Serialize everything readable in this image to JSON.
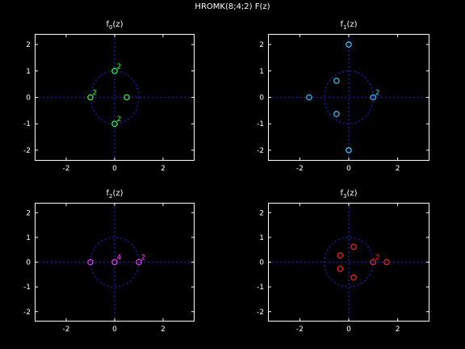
{
  "figure_title": "HROMK(8;4;2) F(z)",
  "chart_data": [
    {
      "type": "scatter",
      "title_main": "f",
      "title_sub": "0",
      "title_rest": "(z)",
      "color": "#33ff33",
      "xlim": [
        -3.3,
        3.3
      ],
      "ylim": [
        -2.4,
        2.4
      ],
      "xticks": [
        -2,
        0,
        2
      ],
      "yticks": [
        -2,
        -1,
        0,
        1,
        2
      ],
      "unit_circle": true,
      "zeros": [
        {
          "x": -1,
          "y": 0,
          "mult": "2"
        },
        {
          "x": 0,
          "y": 1,
          "mult": "2"
        },
        {
          "x": 0,
          "y": -1,
          "mult": "2"
        },
        {
          "x": 0.5,
          "y": 0,
          "mult": ""
        }
      ]
    },
    {
      "type": "scatter",
      "title_main": "f",
      "title_sub": "1",
      "title_rest": "(z)",
      "color": "#33ccff",
      "xlim": [
        -3.3,
        3.3
      ],
      "ylim": [
        -2.4,
        2.4
      ],
      "xticks": [
        -2,
        0,
        2
      ],
      "yticks": [
        -2,
        -1,
        0,
        1,
        2
      ],
      "unit_circle": true,
      "zeros": [
        {
          "x": 0,
          "y": 2,
          "mult": ""
        },
        {
          "x": 0,
          "y": -2,
          "mult": ""
        },
        {
          "x": -1.62,
          "y": 0,
          "mult": ""
        },
        {
          "x": -0.5,
          "y": 0.63,
          "mult": ""
        },
        {
          "x": -0.5,
          "y": -0.63,
          "mult": ""
        },
        {
          "x": 1,
          "y": 0,
          "mult": "2"
        }
      ]
    },
    {
      "type": "scatter",
      "title_main": "f",
      "title_sub": "2",
      "title_rest": "(z)",
      "color": "#ff33ff",
      "xlim": [
        -3.3,
        3.3
      ],
      "ylim": [
        -2.4,
        2.4
      ],
      "xticks": [
        -2,
        0,
        2
      ],
      "yticks": [
        -2,
        -1,
        0,
        1,
        2
      ],
      "unit_circle": true,
      "zeros": [
        {
          "x": -1,
          "y": 0,
          "mult": ""
        },
        {
          "x": 0,
          "y": 0,
          "mult": "4"
        },
        {
          "x": 1,
          "y": 0,
          "mult": "2"
        }
      ]
    },
    {
      "type": "scatter",
      "title_main": "f",
      "title_sub": "3",
      "title_rest": "(z)",
      "color": "#ff2222",
      "xlim": [
        -3.3,
        3.3
      ],
      "ylim": [
        -2.4,
        2.4
      ],
      "xticks": [
        -2,
        0,
        2
      ],
      "yticks": [
        -2,
        -1,
        0,
        1,
        2
      ],
      "unit_circle": true,
      "zeros": [
        {
          "x": -0.35,
          "y": 0.27,
          "mult": ""
        },
        {
          "x": -0.35,
          "y": -0.27,
          "mult": ""
        },
        {
          "x": 0.2,
          "y": 0.62,
          "mult": ""
        },
        {
          "x": 0.2,
          "y": -0.62,
          "mult": ""
        },
        {
          "x": 1,
          "y": 0,
          "mult": "2"
        },
        {
          "x": 1.55,
          "y": 0,
          "mult": ""
        }
      ]
    }
  ]
}
